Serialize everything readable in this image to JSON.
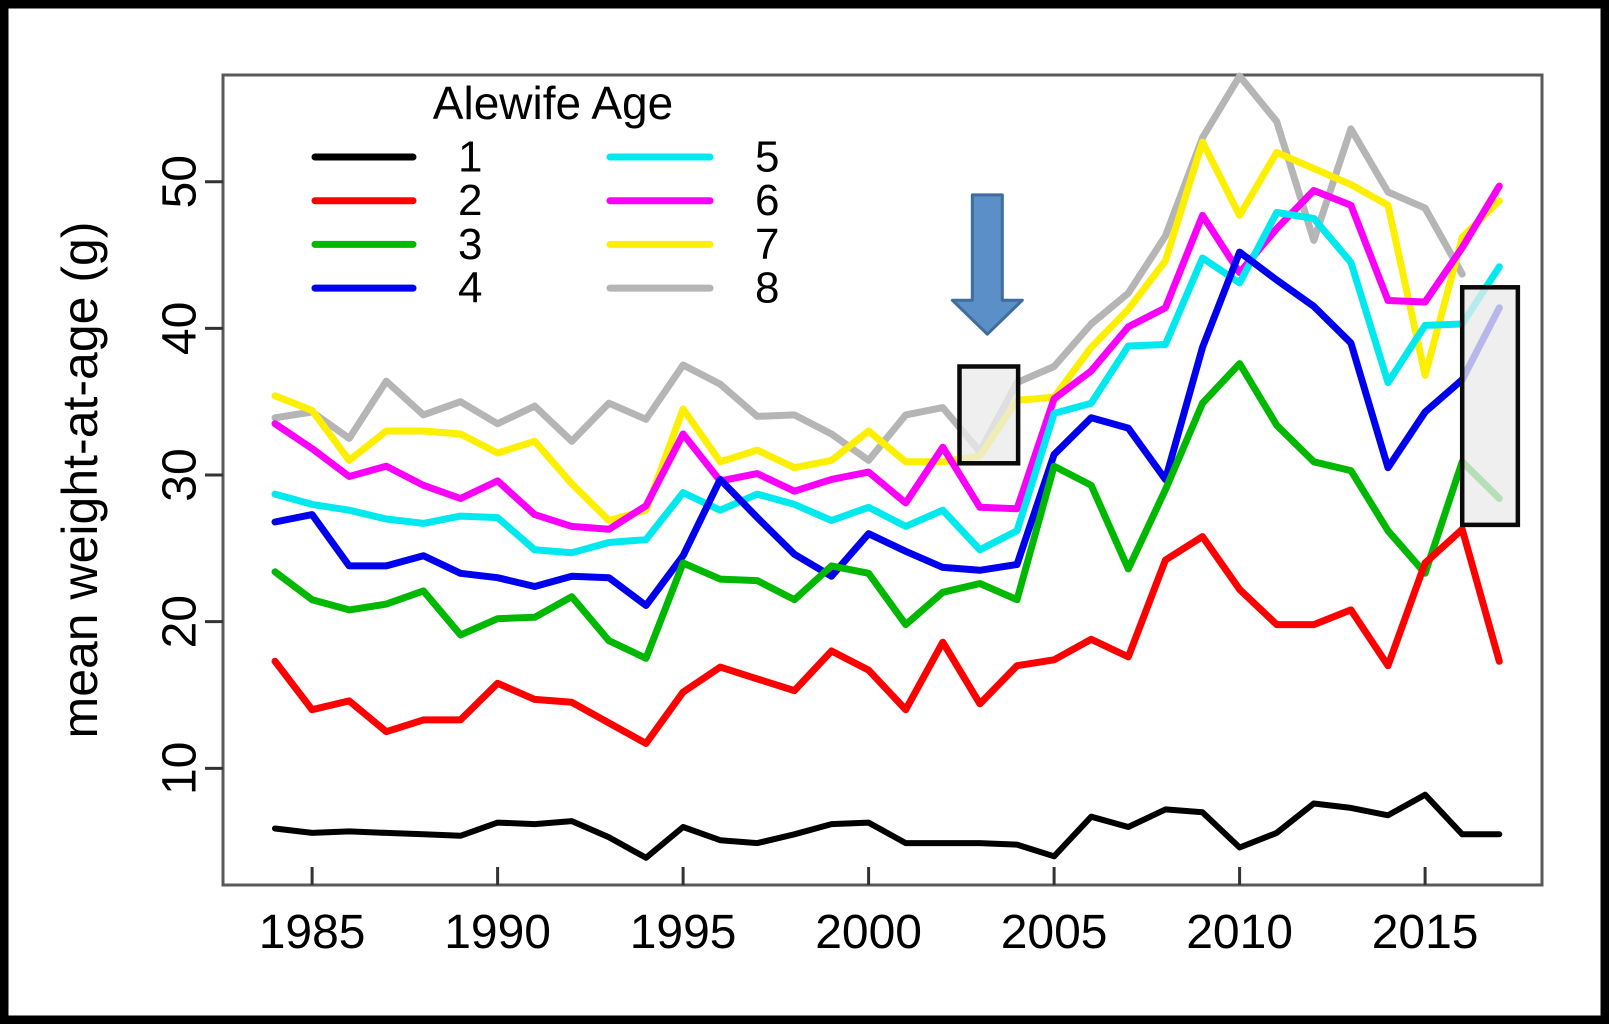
{
  "window": {
    "background": "#ffffff",
    "border_color": "#000000"
  },
  "chart_data": {
    "type": "line",
    "legend_title": "Alewife Age",
    "ylabel": "mean weight-at-age (g)",
    "xlabel": "",
    "x_ticks": [
      1985,
      1990,
      1995,
      2000,
      2005,
      2010,
      2015
    ],
    "y_ticks": [
      10,
      20,
      30,
      40,
      50
    ],
    "xlim": [
      1982.6,
      2018.1
    ],
    "ylim": [
      2.0,
      57.3
    ],
    "grid": false,
    "legend_position": "top-left-two-columns",
    "years": [
      1984,
      1985,
      1986,
      1987,
      1988,
      1989,
      1990,
      1991,
      1992,
      1993,
      1994,
      1995,
      1996,
      1997,
      1998,
      1999,
      2000,
      2001,
      2002,
      2003,
      2004,
      2005,
      2006,
      2007,
      2008,
      2009,
      2010,
      2011,
      2012,
      2013,
      2014,
      2015,
      2016,
      2017
    ],
    "series": [
      {
        "name": "1",
        "color": "#000000",
        "values": [
          5.9,
          5.6,
          5.7,
          5.6,
          5.5,
          5.4,
          6.3,
          6.2,
          6.4,
          5.3,
          3.9,
          6.0,
          5.1,
          4.9,
          5.5,
          6.2,
          6.3,
          4.9,
          4.9,
          4.9,
          4.8,
          4.0,
          6.7,
          6.0,
          7.2,
          7.0,
          4.6,
          5.6,
          7.6,
          7.3,
          6.8,
          8.2,
          5.5,
          5.5
        ]
      },
      {
        "name": "2",
        "color": "#fe0000",
        "values": [
          17.3,
          14.0,
          14.6,
          12.5,
          13.3,
          13.3,
          15.8,
          14.7,
          14.5,
          13.1,
          11.7,
          15.2,
          16.9,
          16.1,
          15.3,
          18.0,
          16.7,
          14.0,
          18.6,
          14.4,
          17.0,
          17.4,
          18.8,
          17.6,
          24.2,
          25.8,
          22.2,
          19.8,
          19.8,
          20.8,
          17.0,
          24.0,
          26.3,
          17.3
        ]
      },
      {
        "name": "3",
        "color": "#00b800",
        "values": [
          23.4,
          21.5,
          20.8,
          21.2,
          22.1,
          19.1,
          20.2,
          20.3,
          21.7,
          18.7,
          17.5,
          24.0,
          22.9,
          22.8,
          21.5,
          23.8,
          23.3,
          19.8,
          22.0,
          22.6,
          21.5,
          30.6,
          29.3,
          23.6,
          29.0,
          34.9,
          37.6,
          33.4,
          30.9,
          30.3,
          26.2,
          23.3,
          30.9,
          28.4
        ]
      },
      {
        "name": "4",
        "color": "#0000ee",
        "values": [
          26.8,
          27.3,
          23.8,
          23.8,
          24.5,
          23.3,
          23.0,
          22.4,
          23.1,
          23.0,
          21.1,
          24.5,
          29.7,
          27.1,
          24.6,
          23.1,
          26.0,
          24.8,
          23.7,
          23.5,
          23.9,
          31.4,
          33.9,
          33.2,
          29.7,
          38.7,
          45.2,
          43.3,
          41.5,
          39.0,
          30.5,
          34.3,
          36.5,
          41.4
        ]
      },
      {
        "name": "5",
        "color": "#00e9ee",
        "values": [
          28.7,
          28.0,
          27.6,
          27.0,
          26.7,
          27.2,
          27.1,
          24.9,
          24.7,
          25.4,
          25.6,
          28.8,
          27.6,
          28.7,
          28.0,
          26.9,
          27.8,
          26.5,
          27.6,
          24.9,
          26.2,
          34.2,
          34.9,
          38.8,
          38.9,
          44.8,
          43.1,
          47.9,
          47.5,
          44.5,
          36.3,
          40.2,
          40.3,
          44.2
        ]
      },
      {
        "name": "6",
        "color": "#fa00fa",
        "values": [
          33.5,
          31.8,
          29.9,
          30.6,
          29.3,
          28.4,
          29.6,
          27.3,
          26.5,
          26.3,
          27.9,
          32.8,
          29.6,
          30.1,
          28.9,
          29.7,
          30.2,
          28.1,
          31.9,
          27.8,
          27.7,
          35.2,
          37.1,
          40.1,
          41.4,
          47.7,
          43.8,
          46.8,
          49.4,
          48.4,
          41.9,
          41.8,
          45.5,
          49.7
        ]
      },
      {
        "name": "7",
        "color": "#fcf000",
        "values": [
          35.4,
          34.4,
          31.0,
          33.0,
          33.0,
          32.8,
          31.5,
          32.3,
          29.4,
          26.9,
          27.6,
          34.5,
          30.9,
          31.7,
          30.5,
          31.0,
          33.0,
          30.9,
          30.9,
          31.3,
          35.1,
          35.3,
          38.7,
          41.3,
          44.6,
          52.7,
          47.7,
          52.0,
          50.9,
          49.8,
          48.4,
          36.8,
          46.2,
          48.7
        ]
      },
      {
        "name": "8",
        "color": "#b5b5b5",
        "values": [
          33.9,
          34.3,
          32.5,
          36.4,
          34.1,
          35.0,
          33.5,
          34.7,
          32.3,
          34.9,
          33.8,
          37.5,
          36.2,
          34.0,
          34.1,
          32.8,
          31.0,
          34.1,
          34.6,
          31.6,
          36.3,
          37.4,
          40.3,
          42.4,
          46.3,
          53.0,
          57.2,
          54.1,
          46.0,
          53.6,
          49.3,
          48.2,
          43.7,
          null
        ]
      }
    ],
    "annotations": {
      "arrow": {
        "type": "down-arrow",
        "x": 2003.2,
        "y_top": 49.1,
        "y_tip": 39.6,
        "fill": "#5a8fc7",
        "stroke": "#3e6d9e"
      },
      "highlight_boxes": [
        {
          "x1": 2002.45,
          "x2": 2004.03,
          "y1": 30.8,
          "y2": 37.4
        },
        {
          "x1": 2016.0,
          "x2": 2017.5,
          "y1": 26.6,
          "y2": 42.8
        }
      ]
    }
  }
}
